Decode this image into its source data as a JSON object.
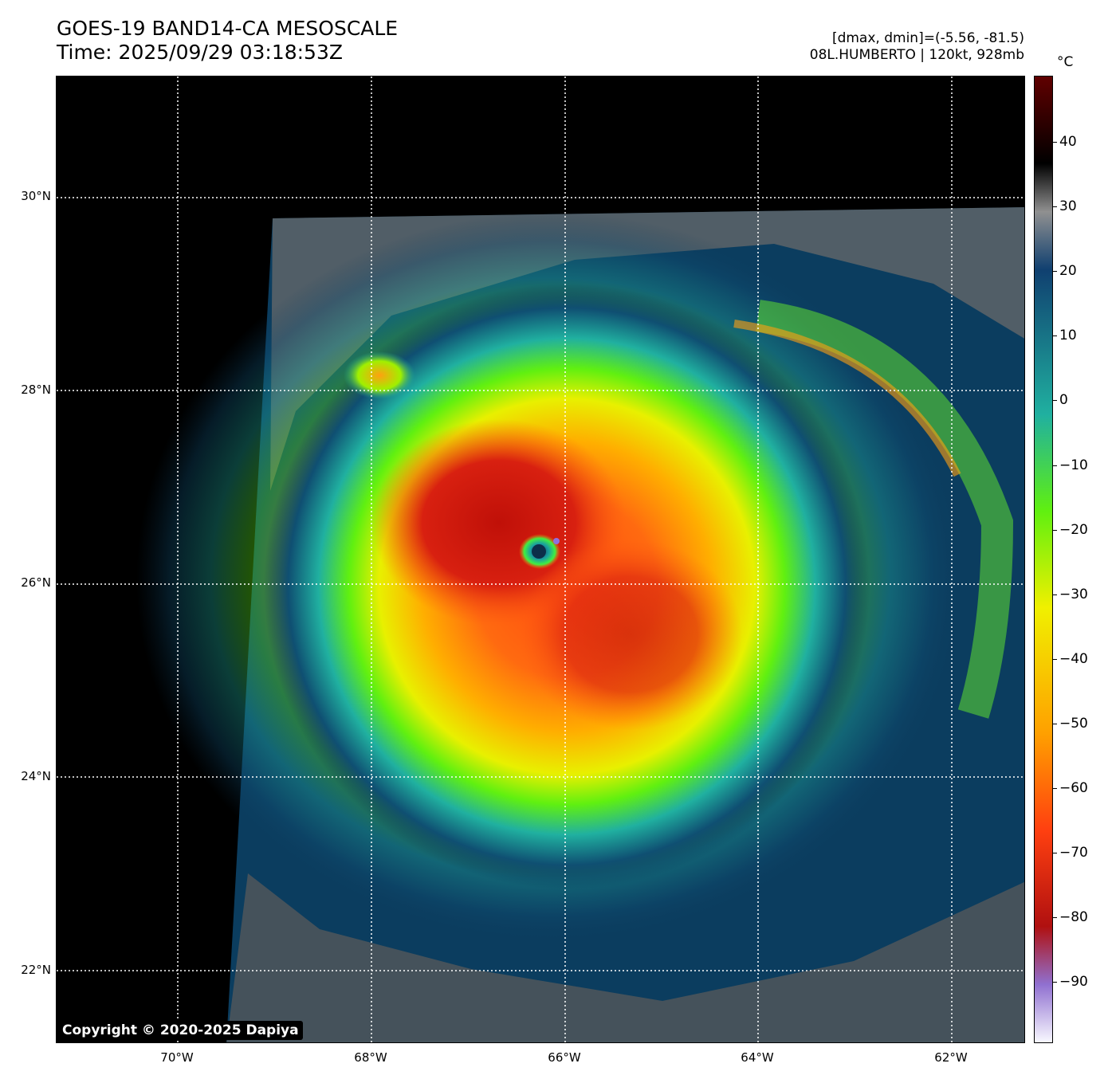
{
  "header": {
    "title": "GOES-19 BAND14-CA MESOSCALE",
    "time": "Time: 2025/09/29 03:18:53Z",
    "dminmax": "[dmax, dmin]=(-5.56, -81.5)",
    "storm": "08L.HUMBERTO | 120kt, 928mb"
  },
  "map": {
    "lat_labels": [
      "30°N",
      "28°N",
      "26°N",
      "24°N",
      "22°N"
    ],
    "lon_labels": [
      "70°W",
      "68°W",
      "66°W",
      "64°W",
      "62°W"
    ],
    "gridline_style": "dotted white",
    "storm_eye": "near 26.3°N, 66.3°W"
  },
  "colorbar": {
    "unit": "°C",
    "ticks": [
      "40",
      "30",
      "20",
      "10",
      "0",
      "−10",
      "−20",
      "−30",
      "−40",
      "−50",
      "−60",
      "−70",
      "−80",
      "−90"
    ],
    "colors": [
      "#f8f8ff",
      "#9070d0",
      "#b01010",
      "#ff4010",
      "#ffa000",
      "#f0f000",
      "#60f010",
      "#20b0a0",
      "#104070",
      "#909090",
      "#000000",
      "#600000"
    ]
  },
  "copyright": "Copyright © 2020-2025 Dapiya"
}
